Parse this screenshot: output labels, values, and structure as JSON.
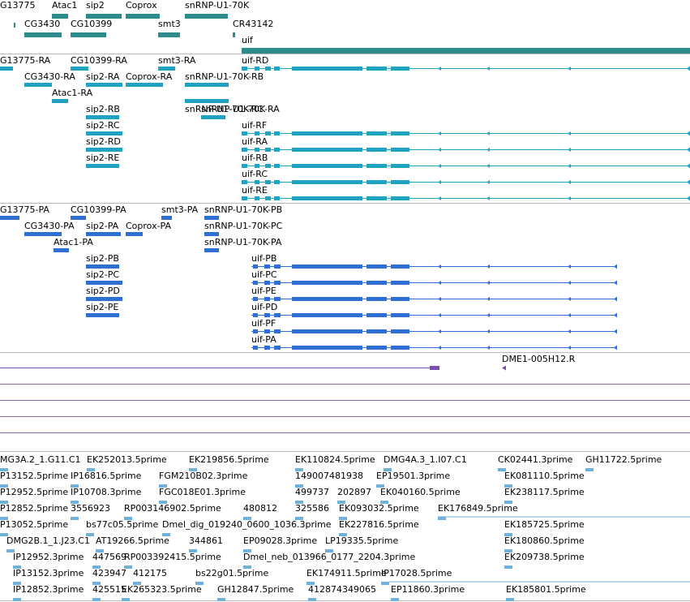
{
  "colors": {
    "gene": "#2e8b8b",
    "transcript": "#1fa3c0",
    "protein": "#2f6fd4",
    "cdna": "#7b4fb0",
    "cdnaLine": "#8a6bb8",
    "est": "#6fb0de",
    "trackBorder": "#b8b8b8"
  },
  "genes": [
    {
      "label": "G13775"
    },
    {
      "label": "Atac1"
    },
    {
      "label": "sip2"
    },
    {
      "label": "Coprox"
    },
    {
      "label": "snRNP-U1-70K"
    },
    {
      "label": "CG3430"
    },
    {
      "label": "CG10399"
    },
    {
      "label": "smt3"
    },
    {
      "label": "CR43142"
    },
    {
      "label": "uif"
    }
  ],
  "transcripts": [
    {
      "label": "G13775-RA"
    },
    {
      "label": "CG10399-RA"
    },
    {
      "label": "smt3-RA"
    },
    {
      "label": "uif-RD"
    },
    {
      "label": "CG3430-RA"
    },
    {
      "label": "sip2-RA"
    },
    {
      "label": "Coprox-RA"
    },
    {
      "label": "snRNP-U1-70K-RB"
    },
    {
      "label": "Atac1-RA"
    },
    {
      "label": "snRNP-U1-70K-RC"
    },
    {
      "label": "snRNP-U1-70K-RA"
    },
    {
      "label": "sip2-RB"
    },
    {
      "label": "sip2-RC"
    },
    {
      "label": "sip2-RD"
    },
    {
      "label": "sip2-RE"
    },
    {
      "label": "uif-RF"
    },
    {
      "label": "uif-RA"
    },
    {
      "label": "uif-RB"
    },
    {
      "label": "uif-RC"
    },
    {
      "label": "uif-RE"
    }
  ],
  "proteins": [
    {
      "label": "G13775-PA"
    },
    {
      "label": "CG10399-PA"
    },
    {
      "label": "smt3-PA"
    },
    {
      "label": "snRNP-U1-70K-PB"
    },
    {
      "label": "CG3430-PA"
    },
    {
      "label": "sip2-PA"
    },
    {
      "label": "Coprox-PA"
    },
    {
      "label": "snRNP-U1-70K-PC"
    },
    {
      "label": "Atac1-PA"
    },
    {
      "label": "snRNP-U1-70K-PA"
    },
    {
      "label": "sip2-PB"
    },
    {
      "label": "sip2-PC"
    },
    {
      "label": "sip2-PD"
    },
    {
      "label": "sip2-PE"
    },
    {
      "label": "uif-PB"
    },
    {
      "label": "uif-PC"
    },
    {
      "label": "uif-PE"
    },
    {
      "label": "uif-PD"
    },
    {
      "label": "uif-PF"
    },
    {
      "label": "uif-PA"
    }
  ],
  "cdna": [
    {
      "label": "DME1-005H12.R"
    }
  ],
  "ests": [
    {
      "label": "MG3A.2_1.G11.C1"
    },
    {
      "label": "EK252013.5prime"
    },
    {
      "label": "EK219856.5prime"
    },
    {
      "label": "EK110824.5prime"
    },
    {
      "label": "DMG4A.3_1.I07.C1"
    },
    {
      "label": "CK02441.3prime"
    },
    {
      "label": "GH11722.5prime"
    },
    {
      "label": "P13152.5prime"
    },
    {
      "label": "IP16816.5prime"
    },
    {
      "label": "FGM210B02.3prime"
    },
    {
      "label": "149007481938"
    },
    {
      "label": "EP19501.3prime"
    },
    {
      "label": "EK081110.5prime"
    },
    {
      "label": "P12952.5prime"
    },
    {
      "label": "IP10708.3prime"
    },
    {
      "label": "FGC018E01.3prime"
    },
    {
      "label": "499737"
    },
    {
      "label": "202897"
    },
    {
      "label": "EK040160.5prime"
    },
    {
      "label": "EK238117.5prime"
    },
    {
      "label": "P12852.5prime"
    },
    {
      "label": "3556923"
    },
    {
      "label": "RP003146902.5prime"
    },
    {
      "label": "480812"
    },
    {
      "label": "325586"
    },
    {
      "label": "EK093032.5prime"
    },
    {
      "label": "EK176849.5prime"
    },
    {
      "label": "P13052.5prime"
    },
    {
      "label": "bs77c05.5prime"
    },
    {
      "label": "Dmel_dig_019240_0600_1036.3prime"
    },
    {
      "label": "EK227816.5prime"
    },
    {
      "label": "EK185725.5prime"
    },
    {
      "label": "DMG2B.1_1.J23.C1"
    },
    {
      "label": "AT19266.5prime"
    },
    {
      "label": "344861"
    },
    {
      "label": "EP09028.3prime"
    },
    {
      "label": "LP19335.5prime"
    },
    {
      "label": "EK180860.5prime"
    },
    {
      "label": "IP12952.3prime"
    },
    {
      "label": "447569"
    },
    {
      "label": "RP003392415.5prime"
    },
    {
      "label": "Dmel_neb_013966_0177_2204.3prime"
    },
    {
      "label": "EK209738.5prime"
    },
    {
      "label": "IP13152.3prime"
    },
    {
      "label": "423947"
    },
    {
      "label": "412175"
    },
    {
      "label": "bs22g01.5prime"
    },
    {
      "label": "EK174911.5prime"
    },
    {
      "label": "IP17028.5prime"
    },
    {
      "label": "IP12852.3prime"
    },
    {
      "label": "425515"
    },
    {
      "label": "EK265323.5prime"
    },
    {
      "label": "GH12847.5prime"
    },
    {
      "label": "412874349065"
    },
    {
      "label": "EP11860.3prime"
    },
    {
      "label": "EK185801.5prime"
    }
  ]
}
